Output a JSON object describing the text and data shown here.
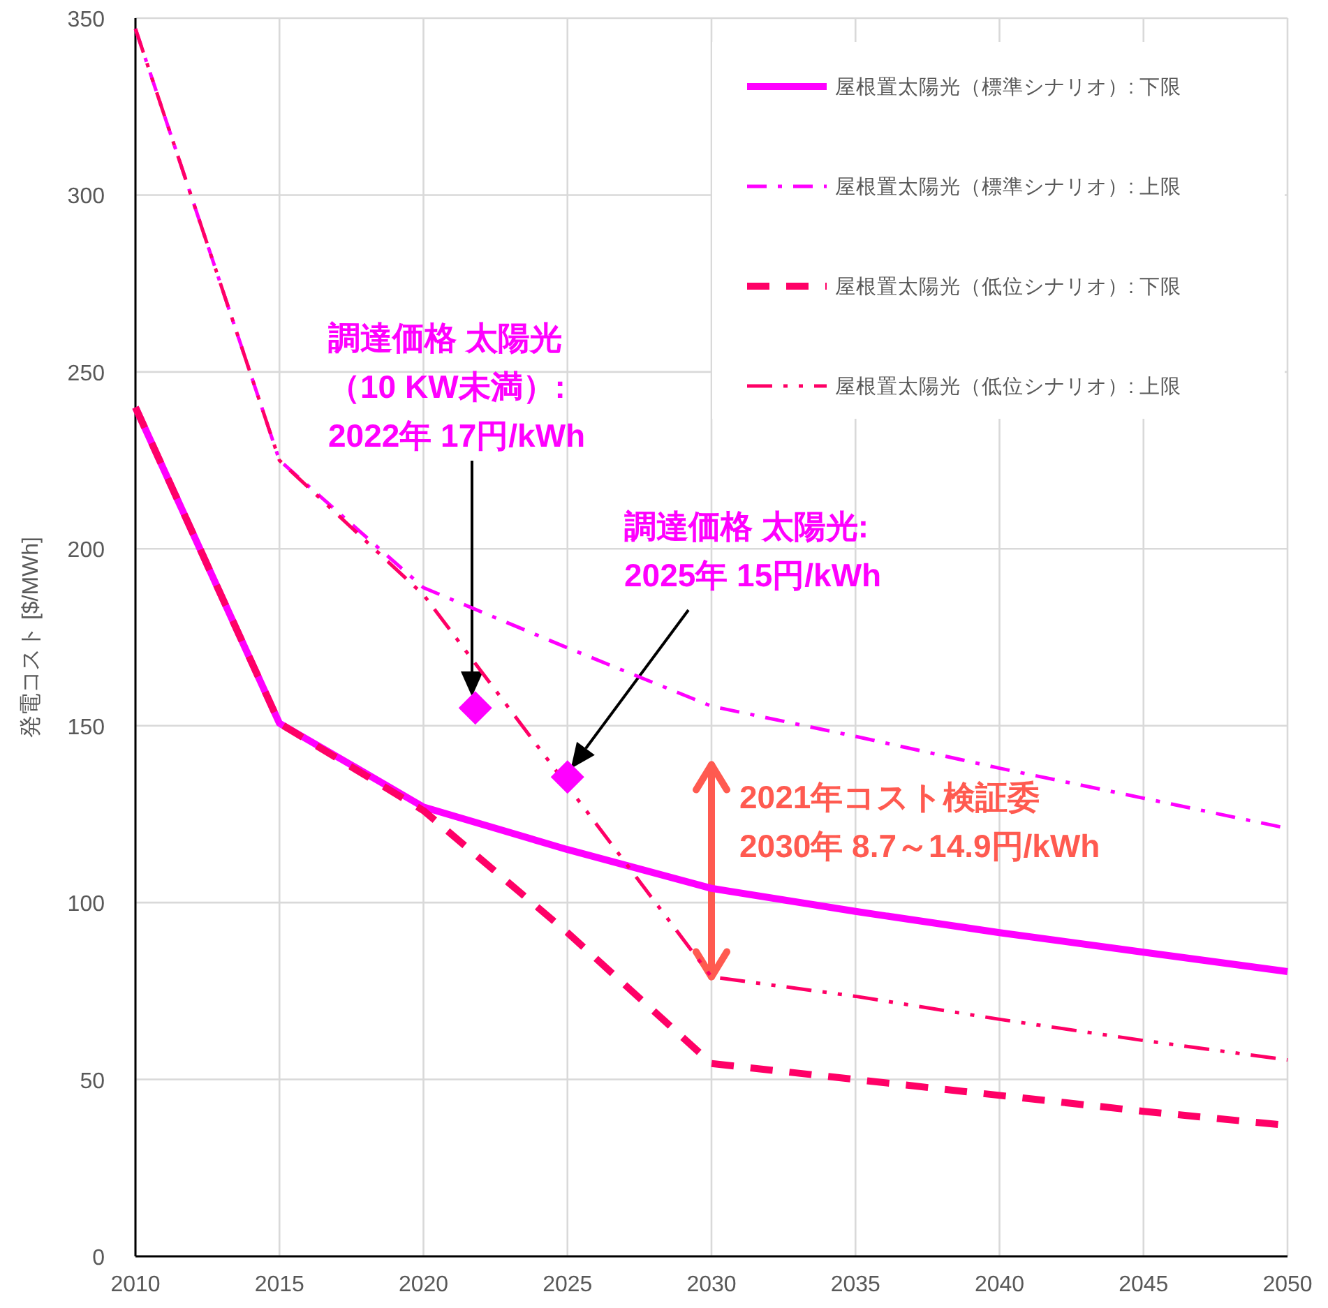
{
  "chart_data": {
    "type": "line",
    "ylabel": "発電コスト [$/MWh]",
    "x": [
      2010,
      2015,
      2020,
      2025,
      2030,
      2035,
      2040,
      2045,
      2050
    ],
    "xlim": [
      2010,
      2050
    ],
    "xticks": [
      2010,
      2015,
      2020,
      2025,
      2030,
      2035,
      2040,
      2045,
      2050
    ],
    "ylim": [
      0,
      350
    ],
    "yticks": [
      0,
      50,
      100,
      150,
      200,
      250,
      300,
      350
    ],
    "grid": true,
    "legend": "top right",
    "series": [
      {
        "name": "屋根置太陽光（標準シナリオ）: 下限",
        "color": "#ff00ff",
        "line_style": "solid",
        "values": [
          240,
          150.7,
          127,
          115,
          104,
          97.5,
          91.5,
          86,
          80.5
        ]
      },
      {
        "name": "屋根置太陽光（標準シナリオ）: 上限",
        "color": "#ff00ff",
        "line_style": "dashdot",
        "values": [
          347,
          225,
          189,
          172,
          155.5,
          147,
          138,
          129.5,
          121
        ]
      },
      {
        "name": "屋根置太陽光（低位シナリオ）: 下限",
        "color": "#ff0066",
        "line_style": "dashed",
        "values": [
          240,
          150.7,
          126,
          91.5,
          54.5,
          50,
          45.5,
          41,
          37
        ]
      },
      {
        "name": "屋根置太陽光（低位シナリオ）: 上限",
        "color": "#ff0066",
        "line_style": "dashdotdot",
        "values": [
          347,
          225,
          187,
          null,
          79,
          73.5,
          67,
          61,
          55.5
        ]
      },
      {
        "type": "scatter",
        "marker": "diamond",
        "color": "#ff00ff",
        "x": [
          2021.8,
          2025
        ],
        "values": [
          155,
          135.5
        ]
      }
    ],
    "annotations": [
      "調達価格 太陽光（10 KW未満）:\n2022年 17円/kWh",
      "調達価格 太陽光:\n2025年 15円/kWh",
      {
        "text": "2021年コスト検証委\n2030年 8.7～14.9円/kWh",
        "x": 2030,
        "y": 79
      }
    ]
  }
}
